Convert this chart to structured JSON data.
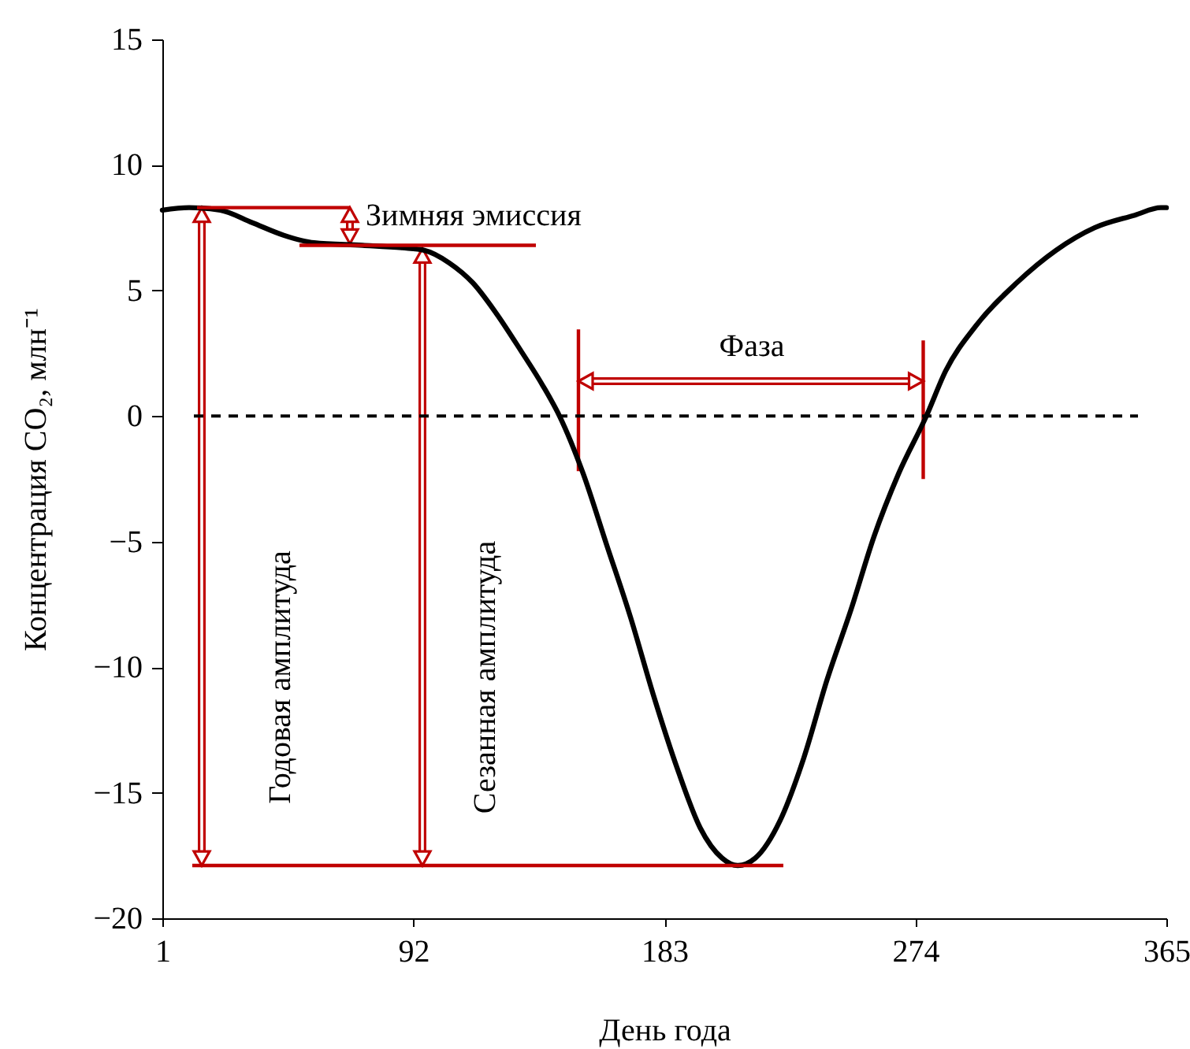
{
  "chart_data": {
    "type": "line",
    "xlabel": "День года",
    "ylabel": "Концентрация CO₂, млн⁻¹",
    "x": [
      1,
      10.7,
      22,
      33.6,
      45,
      56,
      73.6,
      88,
      96,
      105,
      113.6,
      122,
      131,
      139,
      145,
      153.6,
      162,
      170.7,
      179,
      187.9,
      196,
      203.9,
      209.6,
      216,
      225,
      233.6,
      242,
      250.7,
      259,
      267.9,
      278,
      285,
      296,
      310.7,
      325,
      339,
      353.6,
      363,
      365
    ],
    "series": [
      {
        "color": "#000000",
        "values": [
          8.2,
          8.3,
          8.2,
          7.7,
          7.2,
          6.9,
          6.8,
          6.7,
          6.6,
          6.1,
          5.3,
          4.1,
          2.6,
          1.2,
          0,
          -2.3,
          -5.1,
          -8.0,
          -11.1,
          -14.1,
          -16.4,
          -17.6,
          -17.9,
          -17.6,
          -16.1,
          -13.6,
          -10.5,
          -7.7,
          -4.8,
          -2.3,
          0,
          1.8,
          3.6,
          5.3,
          6.6,
          7.5,
          8.0,
          8.3,
          8.3
        ]
      }
    ],
    "xlim": [
      1,
      365
    ],
    "xticks": [
      1,
      92,
      183,
      274,
      365
    ],
    "ylim": [
      -20,
      15
    ],
    "yticks": [
      -20,
      -15,
      -10,
      -5,
      0,
      5,
      10,
      15
    ],
    "ref_lines": [
      {
        "axis": "y",
        "value": 0,
        "color": "#000000",
        "line_style": "dashed"
      },
      {
        "axis": "y",
        "value": 8.3,
        "color": "#c00000"
      },
      {
        "axis": "y",
        "value": 6.8,
        "color": "#c00000"
      },
      {
        "axis": "y",
        "value": -17.9,
        "color": "#c00000"
      }
    ],
    "annotations": [
      "Зимняя эмиссия",
      "Фаза",
      "Годовая амплитуда",
      "Сезанная амплитуда"
    ],
    "grid": false
  }
}
